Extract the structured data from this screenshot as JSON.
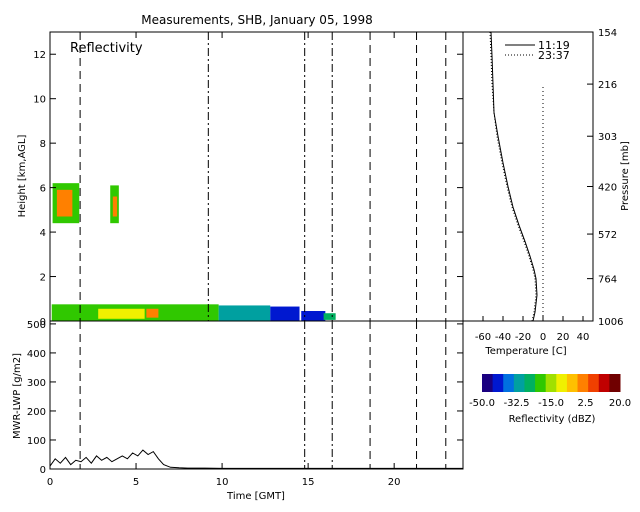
{
  "title": "Measurements, SHB, January 05, 1998",
  "chart_data": [
    {
      "id": "reflectivity",
      "type": "heatmap",
      "annotation": "Reflectivity",
      "xlabel": "",
      "ylabel": "Height [km,AGL]",
      "xlim": [
        0,
        24
      ],
      "ylim": [
        0,
        13
      ],
      "yticks": [
        0,
        2,
        4,
        6,
        8,
        10,
        12
      ],
      "cells": [
        {
          "x0": 0.15,
          "x1": 1.7,
          "y0": 4.4,
          "y1": 6.2,
          "dbz": -20
        },
        {
          "x0": 0.4,
          "x1": 1.3,
          "y0": 4.7,
          "y1": 5.9,
          "dbz": 0
        },
        {
          "x0": 3.5,
          "x1": 4.0,
          "y0": 4.4,
          "y1": 6.1,
          "dbz": -20
        },
        {
          "x0": 3.65,
          "x1": 3.9,
          "y0": 4.7,
          "y1": 5.6,
          "dbz": 0
        },
        {
          "x0": 0.1,
          "x1": 9.8,
          "y0": 0.0,
          "y1": 0.75,
          "dbz": -20
        },
        {
          "x0": 2.8,
          "x1": 5.5,
          "y0": 0.1,
          "y1": 0.55,
          "dbz": -10
        },
        {
          "x0": 5.6,
          "x1": 6.3,
          "y0": 0.15,
          "y1": 0.55,
          "dbz": 0
        },
        {
          "x0": 9.8,
          "x1": 12.8,
          "y0": 0.0,
          "y1": 0.7,
          "dbz": -35
        },
        {
          "x0": 12.8,
          "x1": 14.5,
          "y0": 0.0,
          "y1": 0.65,
          "dbz": -45
        },
        {
          "x0": 14.6,
          "x1": 16.0,
          "y0": 0.0,
          "y1": 0.45,
          "dbz": -45
        },
        {
          "x0": 15.9,
          "x1": 16.6,
          "y0": 0.05,
          "y1": 0.35,
          "dbz": -25
        }
      ],
      "vlines_dashed": [
        1.75,
        18.6,
        21.3,
        23.0
      ],
      "vlines_dashdot": [
        9.2,
        14.8,
        16.4
      ]
    },
    {
      "id": "sounding",
      "type": "line",
      "xlabel": "Temperature [C]",
      "ylabel": "Pressure [mb]",
      "xlim": [
        -80,
        50
      ],
      "xticks": [
        -60,
        -40,
        -20,
        0,
        20,
        40
      ],
      "xtick_labels": [
        "-60",
        "-40",
        "-20",
        "0",
        "20",
        "40"
      ],
      "yticks": [
        154,
        216,
        303,
        420,
        572,
        764,
        1006
      ],
      "series": [
        {
          "name": "11:19",
          "style": "solid",
          "x": [
            -52,
            -51,
            -50,
            -49,
            -45,
            -40,
            -35,
            -30,
            -24,
            -18,
            -13,
            -9,
            -7,
            -6,
            -8,
            -10
          ],
          "y": [
            154,
            180,
            216,
            260,
            303,
            360,
            420,
            480,
            540,
            600,
            660,
            720,
            764,
            850,
            950,
            1006
          ]
        },
        {
          "name": "23:37",
          "style": "dotted",
          "x": [
            -53,
            -52,
            -51,
            -49,
            -46,
            -41,
            -36,
            -31,
            -25,
            -19,
            -14,
            -10,
            -8,
            -7,
            -9,
            -11
          ],
          "y": [
            154,
            180,
            216,
            260,
            303,
            360,
            420,
            480,
            540,
            600,
            660,
            720,
            764,
            850,
            950,
            1006
          ]
        }
      ],
      "vline_dotted_x": 0
    },
    {
      "id": "lwp",
      "type": "line",
      "xlabel": "Time [GMT]",
      "ylabel": "MWR-LWP [g/m2]",
      "xlim": [
        0,
        24
      ],
      "ylim": [
        0,
        510
      ],
      "xticks": [
        0,
        5,
        10,
        15,
        20
      ],
      "yticks": [
        0,
        100,
        200,
        300,
        400,
        500
      ],
      "series": [
        {
          "name": "",
          "x": [
            0,
            0.3,
            0.6,
            0.9,
            1.2,
            1.5,
            1.8,
            2.1,
            2.4,
            2.7,
            3.0,
            3.3,
            3.6,
            3.9,
            4.2,
            4.5,
            4.8,
            5.1,
            5.4,
            5.7,
            6.0,
            6.3,
            6.6,
            7.0,
            7.5,
            8,
            9,
            10,
            11,
            12,
            13,
            14,
            15,
            16,
            17,
            18,
            19,
            20,
            21,
            22,
            23,
            24
          ],
          "y": [
            10,
            35,
            20,
            40,
            15,
            30,
            25,
            40,
            20,
            45,
            30,
            40,
            25,
            35,
            45,
            35,
            55,
            45,
            65,
            50,
            60,
            35,
            15,
            6,
            4,
            3,
            3,
            2,
            2,
            2,
            2,
            2,
            2,
            2,
            2,
            2,
            2,
            2,
            2,
            2,
            2,
            2
          ]
        }
      ],
      "vlines_dashed": [
        1.75,
        18.6,
        21.3,
        23.0
      ],
      "vlines_dashdot": [
        14.8,
        16.4
      ]
    }
  ],
  "colorbar": {
    "label": "Reflectivity (dBZ)",
    "min": -50,
    "max": 20,
    "tick_values": [
      -50,
      -32.5,
      -15,
      2.5,
      20
    ],
    "tick_labels": [
      "-50.0",
      "-32.5",
      "-15.0",
      "2.5",
      "20.0"
    ],
    "colors": [
      "#1a0080",
      "#0018d0",
      "#0070e0",
      "#00a0a0",
      "#00b060",
      "#30c800",
      "#a0e000",
      "#f0f000",
      "#ffc000",
      "#ff8000",
      "#f04000",
      "#c00000",
      "#700000"
    ]
  }
}
